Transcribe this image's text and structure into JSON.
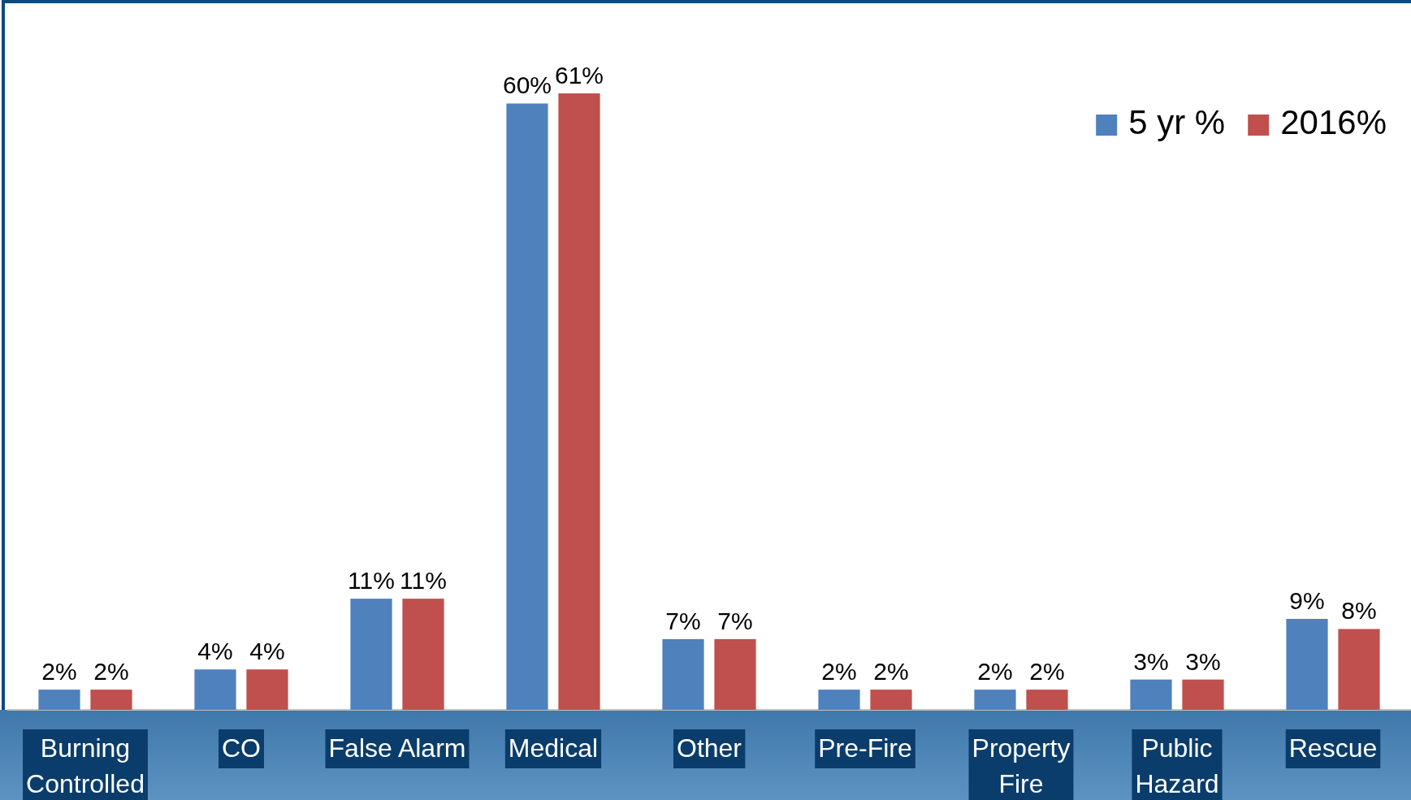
{
  "chart_data": {
    "type": "bar",
    "categories": [
      "Burning Controlled",
      "CO",
      "False Alarm",
      "Medical",
      "Other",
      "Pre-Fire",
      "Property Fire",
      "Public Hazard",
      "Rescue"
    ],
    "series": [
      {
        "name": "5 yr %",
        "color": "#4f81bd",
        "values": [
          2,
          4,
          11,
          60,
          7,
          2,
          2,
          3,
          9
        ],
        "value_labels": [
          "2%",
          "4%",
          "11%",
          "60%",
          "7%",
          "2%",
          "2%",
          "3%",
          "9%"
        ]
      },
      {
        "name": "2016%",
        "color": "#c0504d",
        "values": [
          2,
          4,
          11,
          61,
          7,
          2,
          2,
          3,
          8
        ],
        "value_labels": [
          "2%",
          "4%",
          "11%",
          "61%",
          "7%",
          "2%",
          "2%",
          "3%",
          "8%"
        ]
      }
    ],
    "legend": "top right"
  }
}
